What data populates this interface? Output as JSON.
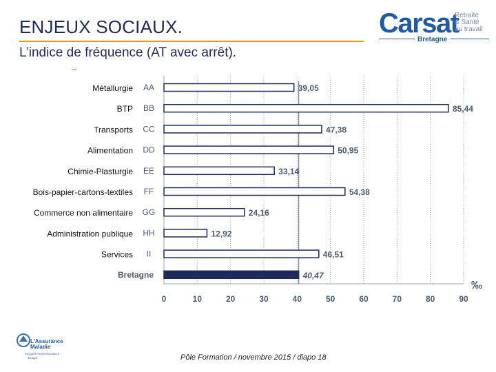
{
  "header": {
    "title": "ENJEUX SOCIAUX.",
    "subtitle": "L’indice de fréquence (AT avec arrêt)."
  },
  "logo": {
    "main": "Carsat",
    "side_line1": "Retraite",
    "side_line2": "& Santé",
    "side_line3": "au travail",
    "region": "Bretagne"
  },
  "assurance_logo": {
    "line1": "L'Assurance",
    "line2": "Maladie",
    "line3": "RISQUES PROFESSIONNELS",
    "line4": "Bretagne"
  },
  "footer": {
    "text": "Pôle Formation / novembre 2015 / diapo 18"
  },
  "colors": {
    "title": "#1f2a5c",
    "accent": "#e8961e",
    "bar_outline": "#1f2a5c",
    "bar_fill": "#ffffff",
    "highlight_bar": "#1f2a5c",
    "grid": "#9aa3b5",
    "tick_text": "#4a5a78"
  },
  "chart_data": {
    "type": "bar",
    "orientation": "horizontal",
    "unit_label": "‰",
    "xlim": [
      0,
      90
    ],
    "x_ticks": [
      "0",
      "10",
      "20",
      "30",
      "40",
      "50",
      "60",
      "70",
      "80",
      "90"
    ],
    "gridlines": "vertical, dotted",
    "codes": [
      "AA",
      "BB",
      "CC",
      "DD",
      "EE",
      "FF",
      "GG",
      "HH",
      "II",
      "Bretagne"
    ],
    "sector_names": [
      "Métallurgie",
      "BTP",
      "Transports",
      "Alimentation",
      "Chimie-Plasturgie",
      "Bois-papier-cartons-textiles",
      "Commerce non alimentaire",
      "Administration publique",
      "Services",
      ""
    ],
    "values": [
      39.05,
      85.44,
      47.38,
      50.95,
      33.14,
      54.38,
      24.16,
      12.92,
      46.51,
      40.47
    ],
    "value_labels": [
      "39,05",
      "85,44",
      "47,38",
      "50,95",
      "33,14",
      "54,38",
      "24,16",
      "12,92",
      "46,51",
      "40,47"
    ],
    "highlight_index": 9,
    "reference_line_value": 40.47
  }
}
